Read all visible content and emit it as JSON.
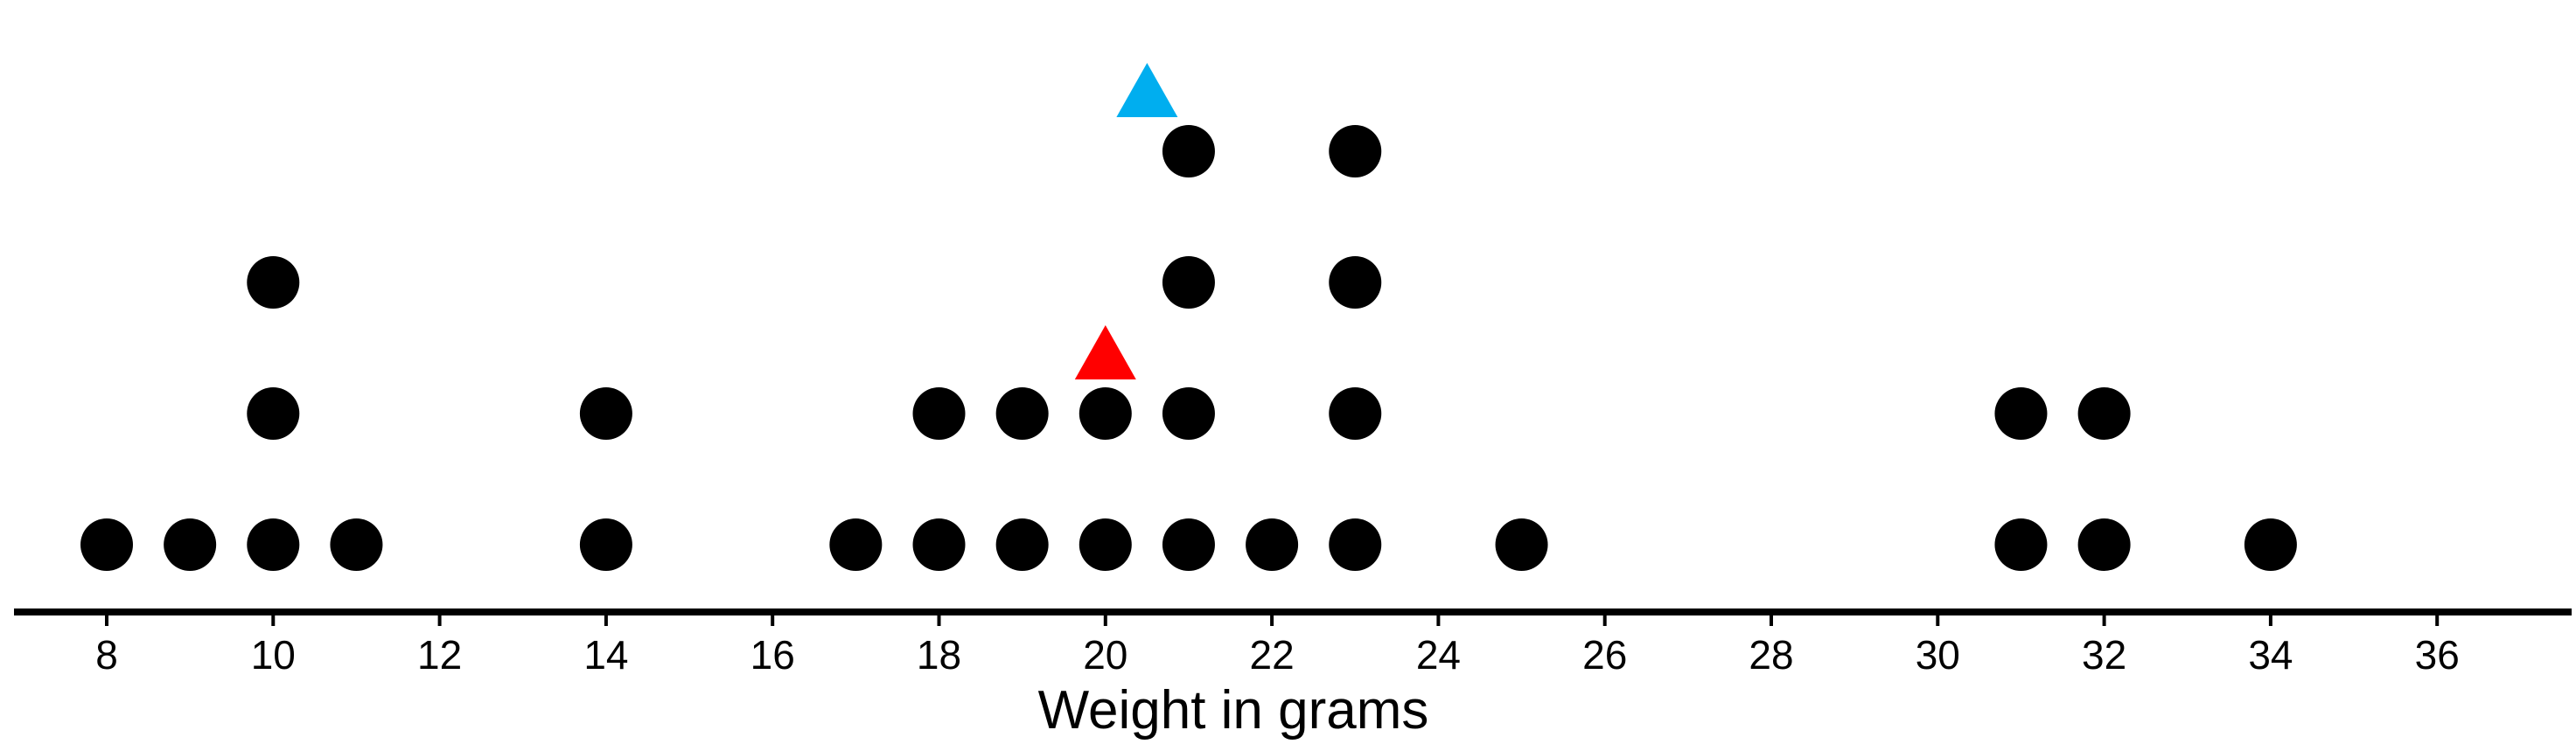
{
  "chart_data": {
    "type": "scatter",
    "subtype": "dot-plot",
    "xlabel": "Weight in grams",
    "ylabel": "",
    "xlim": [
      7,
      37.5
    ],
    "x_ticks": [
      8,
      10,
      12,
      14,
      16,
      18,
      20,
      22,
      24,
      26,
      28,
      30,
      32,
      34,
      36
    ],
    "grid": false,
    "dots": [
      {
        "x": 8,
        "count": 1
      },
      {
        "x": 9,
        "count": 1
      },
      {
        "x": 10,
        "count": 3
      },
      {
        "x": 11,
        "count": 1
      },
      {
        "x": 14,
        "count": 2
      },
      {
        "x": 17,
        "count": 1
      },
      {
        "x": 18,
        "count": 2
      },
      {
        "x": 19,
        "count": 2
      },
      {
        "x": 20,
        "count": 2
      },
      {
        "x": 21,
        "count": 4
      },
      {
        "x": 22,
        "count": 1
      },
      {
        "x": 23,
        "count": 4
      },
      {
        "x": 25,
        "count": 1
      },
      {
        "x": 31,
        "count": 2
      },
      {
        "x": 32,
        "count": 2
      },
      {
        "x": 34,
        "count": 1
      }
    ],
    "markers": [
      {
        "x": 20,
        "level": 2.5,
        "color": "#ff0000"
      },
      {
        "x": 20.5,
        "level": 4.5,
        "color": "#00aeef"
      }
    ],
    "dot_color": "#000000"
  }
}
